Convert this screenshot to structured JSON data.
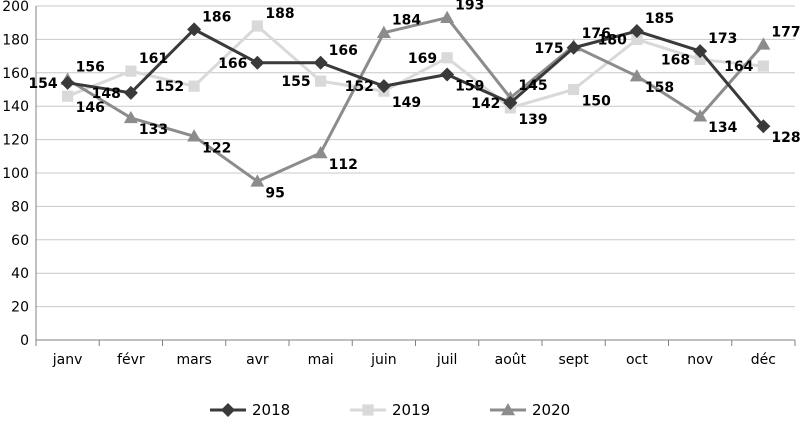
{
  "chart_data": {
    "type": "line",
    "title": "",
    "xlabel": "",
    "ylabel": "",
    "ylim": [
      0,
      200
    ],
    "yticks": [
      0,
      20,
      40,
      60,
      80,
      100,
      120,
      140,
      160,
      180,
      200
    ],
    "grid": "horizontal",
    "legend_position": "bottom",
    "categories": [
      "janv",
      "févr",
      "mars",
      "avr",
      "mai",
      "juin",
      "juil",
      "août",
      "sept",
      "oct",
      "nov",
      "déc"
    ],
    "series": [
      {
        "name": "2018",
        "color": "#3a3a3a",
        "marker": "diamond",
        "values": [
          154,
          148,
          186,
          166,
          166,
          152,
          159,
          142,
          175,
          185,
          173,
          128
        ]
      },
      {
        "name": "2019",
        "color": "#d9d9d9",
        "marker": "square",
        "values": [
          146,
          161,
          152,
          188,
          155,
          149,
          169,
          139,
          150,
          180,
          168,
          164
        ]
      },
      {
        "name": "2020",
        "color": "#8c8c8c",
        "marker": "triangle",
        "values": [
          156,
          133,
          122,
          95,
          112,
          184,
          193,
          145,
          176,
          158,
          134,
          177
        ]
      }
    ]
  }
}
